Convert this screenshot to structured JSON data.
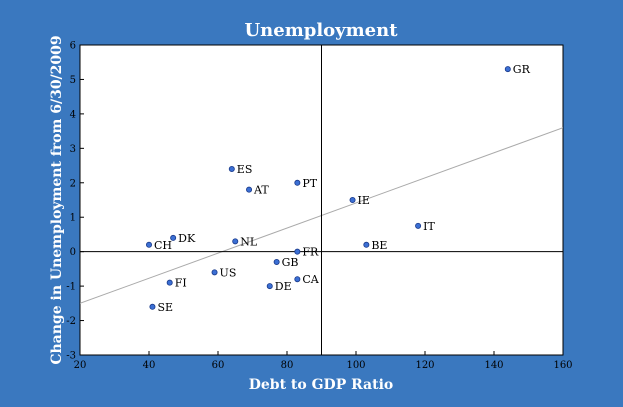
{
  "colors": {
    "background": "#3a78bf",
    "plot_background": "#ffffff",
    "marker_fill": "#3b6fd4",
    "marker_stroke": "#1a3a8a",
    "trendline": "#aaaaaa",
    "reference_lines": "#000000"
  },
  "chart_data": {
    "type": "scatter",
    "title": "Unemployment",
    "xlabel": "Debt to GDP Ratio",
    "ylabel": "Change in Unemployment from 6/30/2009",
    "xlim": [
      20,
      160
    ],
    "ylim": [
      -3,
      6
    ],
    "xticks": [
      20,
      40,
      60,
      80,
      100,
      120,
      140,
      160
    ],
    "yticks": [
      -3,
      -2,
      -1,
      0,
      1,
      2,
      3,
      4,
      5,
      6
    ],
    "grid": false,
    "reference_lines": {
      "x": 90,
      "y": 0
    },
    "trendline": {
      "x": [
        20,
        160
      ],
      "y": [
        -1.5,
        3.6
      ]
    },
    "points": [
      {
        "label": "GR",
        "x": 144,
        "y": 5.3
      },
      {
        "label": "ES",
        "x": 64,
        "y": 2.4
      },
      {
        "label": "AT",
        "x": 69,
        "y": 1.8
      },
      {
        "label": "PT",
        "x": 83,
        "y": 2.0
      },
      {
        "label": "IE",
        "x": 99,
        "y": 1.5
      },
      {
        "label": "IT",
        "x": 118,
        "y": 0.75
      },
      {
        "label": "BE",
        "x": 103,
        "y": 0.2
      },
      {
        "label": "CH",
        "x": 40,
        "y": 0.2
      },
      {
        "label": "DK",
        "x": 47,
        "y": 0.4
      },
      {
        "label": "NL",
        "x": 65,
        "y": 0.3
      },
      {
        "label": "FR",
        "x": 83,
        "y": 0.0
      },
      {
        "label": "GB",
        "x": 77,
        "y": -0.3
      },
      {
        "label": "US",
        "x": 59,
        "y": -0.6
      },
      {
        "label": "FI",
        "x": 46,
        "y": -0.9
      },
      {
        "label": "CA",
        "x": 83,
        "y": -0.8
      },
      {
        "label": "DE",
        "x": 75,
        "y": -1.0
      },
      {
        "label": "SE",
        "x": 41,
        "y": -1.6
      }
    ]
  }
}
